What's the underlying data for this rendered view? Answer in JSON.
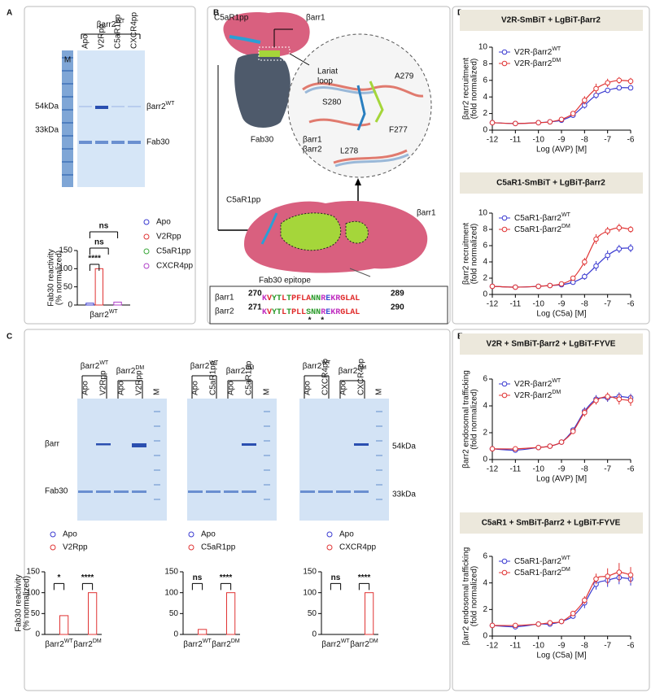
{
  "panel_labels": [
    "A",
    "B",
    "C",
    "D",
    "E"
  ],
  "gel_a": {
    "group": {
      "base": "βarr2",
      "sup": "WT"
    },
    "lanes": [
      "Apo",
      "V2Rpp",
      "C5aR1pp",
      "CXCR4pp"
    ],
    "marker_lane": "M",
    "markers": [
      "54kDa",
      "33kDa"
    ],
    "bands": [
      {
        "base": "βarr2",
        "sup": "WT"
      },
      "Fab30"
    ]
  },
  "structure": {
    "top_ligand": "C5aR1pp",
    "top_protein": "βarr1",
    "fab": "Fab30",
    "loop": [
      "Lariat",
      "loop"
    ],
    "residues": [
      "S280",
      "A279",
      "L278",
      "F277"
    ],
    "key": [
      "βarr1",
      "βarr2"
    ],
    "mid_ligand": "C5aR1pp",
    "mid_protein": "βarr1",
    "epitope": "Fab30 epitope"
  },
  "alignment": {
    "rows": [
      {
        "name": "βarr1",
        "start": 270,
        "seq": "KVYTLTPFLANNREKRGLAL",
        "end": 289
      },
      {
        "name": "βarr2",
        "start": 271,
        "seq": "KVYTLTPLLSNNREKRGLAL",
        "end": 290
      }
    ],
    "marks": [
      "*",
      "*"
    ]
  },
  "gels_c": [
    {
      "groups": [
        {
          "base": "βarr2",
          "sup": "WT"
        },
        {
          "base": "βarr2",
          "sup": "DM"
        }
      ],
      "lanes": [
        "Apo",
        "V2Rpp",
        "Apo",
        "V2Rpp",
        "M"
      ]
    },
    {
      "groups": [
        {
          "base": "βarr2",
          "sup": "WT"
        },
        {
          "base": "βarr2",
          "sup": "DM"
        }
      ],
      "lanes": [
        "Apo",
        "C5aR1pp",
        "Apo",
        "C5aR1pp",
        "M"
      ]
    },
    {
      "groups": [
        {
          "base": "βarr2",
          "sup": "WT"
        },
        {
          "base": "βarr2",
          "sup": "DM"
        }
      ],
      "lanes": [
        "Apo",
        "CXCR4pp",
        "Apo",
        "CXCR4pp",
        "M"
      ]
    }
  ],
  "gel_c_bands": [
    "βarr",
    "Fab30"
  ],
  "gel_c_markers": [
    "54kDa",
    "33kDa"
  ],
  "chart_data": [
    {
      "type": "bar",
      "ylabel": [
        "Fab30 reactivity",
        "(% normalized)"
      ],
      "categories": [
        {
          "base": "βarr2",
          "sup": "WT"
        }
      ],
      "series": [
        {
          "name": "Apo",
          "color": "#3a3ad0",
          "values": [
            5
          ]
        },
        {
          "name": "V2Rpp",
          "color": "#e03434",
          "values": [
            100
          ]
        },
        {
          "name": "C5aR1pp",
          "color": "#3aa83a",
          "values": [
            0
          ]
        },
        {
          "name": "CXCR4pp",
          "color": "#b040c8",
          "values": [
            8
          ]
        }
      ],
      "ylim": [
        0,
        150
      ],
      "yticks": [
        0,
        50,
        100,
        150
      ],
      "annotations": [
        "****",
        "ns",
        "ns"
      ]
    },
    {
      "type": "bar",
      "ylabel": [
        "Fab30 reactivity",
        "(% normalized)"
      ],
      "categories": [
        {
          "base": "βarr2",
          "sup": "WT"
        },
        {
          "base": "βarr2",
          "sup": "DM"
        }
      ],
      "series": [
        {
          "name": "Apo",
          "color": "#3a3ad0",
          "values": [
            0,
            0
          ]
        },
        {
          "name": "V2Rpp",
          "color": "#e03434",
          "values": [
            45,
            100
          ]
        }
      ],
      "ylim": [
        0,
        150
      ],
      "yticks": [
        0,
        50,
        100,
        150
      ],
      "annotations": [
        "*",
        "****"
      ]
    },
    {
      "type": "bar",
      "categories": [
        {
          "base": "βarr2",
          "sup": "WT"
        },
        {
          "base": "βarr2",
          "sup": "DM"
        }
      ],
      "series": [
        {
          "name": "Apo",
          "color": "#3a3ad0",
          "values": [
            0,
            0
          ]
        },
        {
          "name": "C5aR1pp",
          "color": "#e03434",
          "values": [
            12,
            100
          ]
        }
      ],
      "ylim": [
        0,
        150
      ],
      "yticks": [
        0,
        50,
        100,
        150
      ],
      "annotations": [
        "ns",
        "****"
      ]
    },
    {
      "type": "bar",
      "categories": [
        {
          "base": "βarr2",
          "sup": "WT"
        },
        {
          "base": "βarr2",
          "sup": "DM"
        }
      ],
      "series": [
        {
          "name": "Apo",
          "color": "#3a3ad0",
          "values": [
            0,
            0
          ]
        },
        {
          "name": "CXCR4pp",
          "color": "#e03434",
          "values": [
            0,
            100
          ]
        }
      ],
      "ylim": [
        0,
        150
      ],
      "yticks": [
        0,
        50,
        100,
        150
      ],
      "annotations": [
        "ns",
        "****"
      ]
    },
    {
      "type": "line",
      "title": "V2R-SmBiT + LgBiT-βarr2",
      "xlabel": "Log (AVP) [M]",
      "ylabel": [
        "βarr2 recruitment",
        "(fold normalized)"
      ],
      "x": [
        -12,
        -11,
        -10,
        -9.5,
        -9,
        -8.5,
        -8,
        -7.5,
        -7,
        -6.5,
        -6
      ],
      "xlim": [
        -12,
        -6
      ],
      "xticks": [
        -12,
        -11,
        -10,
        -9,
        -8,
        -7,
        -6
      ],
      "ylim": [
        0,
        10
      ],
      "yticks": [
        0,
        2,
        4,
        6,
        8,
        10
      ],
      "series": [
        {
          "name": {
            "base": "V2R-βarr2",
            "sup": "WT"
          },
          "color": "#3a3ad0",
          "values": [
            0.9,
            0.8,
            0.9,
            1.0,
            1.2,
            1.8,
            3.0,
            4.2,
            4.8,
            5.1,
            5.1
          ],
          "errors": [
            0.1,
            0.1,
            0.1,
            0.1,
            0.2,
            0.3,
            0.4,
            0.4,
            0.3,
            0.3,
            0.3
          ]
        },
        {
          "name": {
            "base": "V2R-βarr2",
            "sup": "DM"
          },
          "color": "#e03434",
          "values": [
            0.9,
            0.8,
            0.9,
            1.0,
            1.3,
            2.0,
            3.6,
            5.0,
            5.7,
            6.0,
            5.9
          ],
          "errors": [
            0.1,
            0.1,
            0.1,
            0.1,
            0.2,
            0.3,
            0.5,
            0.6,
            0.5,
            0.4,
            0.4
          ]
        }
      ]
    },
    {
      "type": "line",
      "title": "C5aR1-SmBiT + LgBiT-βarr2",
      "xlabel": "Log (C5a) [M]",
      "ylabel": [
        "βarr2 recruitment",
        "(fold normalized)"
      ],
      "x": [
        -12,
        -11,
        -10,
        -9.5,
        -9,
        -8.5,
        -8,
        -7.5,
        -7,
        -6.5,
        -6
      ],
      "xlim": [
        -12,
        -6
      ],
      "xticks": [
        -12,
        -11,
        -10,
        -9,
        -8,
        -7,
        -6
      ],
      "ylim": [
        0,
        10
      ],
      "yticks": [
        0,
        2,
        4,
        6,
        8,
        10
      ],
      "series": [
        {
          "name": {
            "base": "C5aR1-βarr2",
            "sup": "WT"
          },
          "color": "#3a3ad0",
          "values": [
            1.0,
            0.9,
            1.0,
            1.1,
            1.2,
            1.5,
            2.2,
            3.5,
            4.8,
            5.6,
            5.7
          ],
          "errors": [
            0.1,
            0.1,
            0.1,
            0.1,
            0.1,
            0.2,
            0.4,
            0.6,
            0.6,
            0.5,
            0.5
          ]
        },
        {
          "name": {
            "base": "C5aR1-βarr2",
            "sup": "DM"
          },
          "color": "#e03434",
          "values": [
            1.0,
            0.9,
            1.0,
            1.1,
            1.3,
            2.0,
            4.0,
            6.8,
            7.8,
            8.2,
            8.0
          ],
          "errors": [
            0.1,
            0.1,
            0.1,
            0.1,
            0.2,
            0.3,
            0.5,
            0.6,
            0.5,
            0.5,
            0.4
          ]
        }
      ]
    },
    {
      "type": "line",
      "title": "V2R + SmBiT-βarr2 + LgBiT-FYVE",
      "xlabel": "Log (AVP) [M]",
      "ylabel": [
        "βarr2 endosomal trafficking",
        "(fold normalized)"
      ],
      "x": [
        -12,
        -11,
        -10,
        -9.5,
        -9,
        -8.5,
        -8,
        -7.5,
        -7,
        -6.5,
        -6
      ],
      "xlim": [
        -12,
        -6
      ],
      "xticks": [
        -12,
        -11,
        -10,
        -9,
        -8,
        -7,
        -6
      ],
      "ylim": [
        0,
        6
      ],
      "yticks": [
        0,
        2,
        4,
        6
      ],
      "series": [
        {
          "name": {
            "base": "V2R-βarr2",
            "sup": "WT"
          },
          "color": "#3a3ad0",
          "values": [
            0.8,
            0.7,
            0.9,
            1.0,
            1.3,
            2.2,
            3.6,
            4.5,
            4.6,
            4.7,
            4.6
          ],
          "errors": [
            0.1,
            0.1,
            0.1,
            0.1,
            0.1,
            0.2,
            0.3,
            0.3,
            0.3,
            0.3,
            0.3
          ]
        },
        {
          "name": {
            "base": "V2R-βarr2",
            "sup": "DM"
          },
          "color": "#e03434",
          "values": [
            0.8,
            0.8,
            0.9,
            1.0,
            1.3,
            2.1,
            3.5,
            4.4,
            4.7,
            4.5,
            4.4
          ],
          "errors": [
            0.1,
            0.1,
            0.1,
            0.1,
            0.1,
            0.2,
            0.3,
            0.3,
            0.3,
            0.4,
            0.4
          ]
        }
      ]
    },
    {
      "type": "line",
      "title": "C5aR1 + SmBiT-βarr2 + LgBiT-FYVE",
      "xlabel": "Log (C5a) [M]",
      "ylabel": [
        "βarr2 endosomal trafficking",
        "(fold normalized)"
      ],
      "x": [
        -12,
        -11,
        -10,
        -9.5,
        -9,
        -8.5,
        -8,
        -7.5,
        -7,
        -6.5,
        -6
      ],
      "xlim": [
        -12,
        -6
      ],
      "xticks": [
        -12,
        -11,
        -10,
        -9,
        -8,
        -7,
        -6
      ],
      "ylim": [
        0,
        6
      ],
      "yticks": [
        0,
        2,
        4,
        6
      ],
      "series": [
        {
          "name": {
            "base": "C5aR1-βarr2",
            "sup": "WT"
          },
          "color": "#3a3ad0",
          "values": [
            0.8,
            0.7,
            0.9,
            0.9,
            1.1,
            1.5,
            2.5,
            3.9,
            4.2,
            4.4,
            4.3
          ],
          "errors": [
            0.1,
            0.1,
            0.1,
            0.1,
            0.1,
            0.2,
            0.4,
            0.4,
            0.5,
            0.5,
            0.5
          ]
        },
        {
          "name": {
            "base": "C5aR1-βarr2",
            "sup": "DM"
          },
          "color": "#e03434",
          "values": [
            0.8,
            0.8,
            0.9,
            1.0,
            1.1,
            1.7,
            2.7,
            4.3,
            4.5,
            4.8,
            4.6
          ],
          "errors": [
            0.1,
            0.1,
            0.1,
            0.1,
            0.1,
            0.2,
            0.3,
            0.4,
            0.6,
            0.7,
            0.6
          ]
        }
      ]
    }
  ]
}
